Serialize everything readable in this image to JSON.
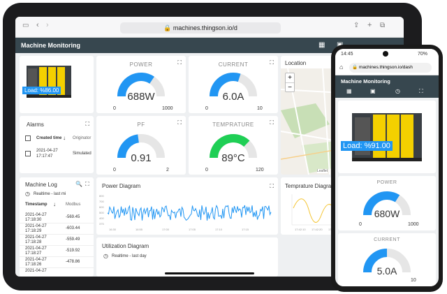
{
  "tablet": {
    "url": "machines.thingson.io/d",
    "app_title": "Machine Monitoring",
    "machine_card": {
      "load_label": "Load: %86.00"
    },
    "power": {
      "title": "POWER",
      "value": "688W",
      "min": "0",
      "max": "1000",
      "fraction": 0.688
    },
    "current": {
      "title": "CURRENT",
      "value": "6.0A",
      "min": "0",
      "max": "10",
      "fraction": 0.6
    },
    "pf": {
      "title": "PF",
      "value": "0.91",
      "min": "0",
      "max": "2",
      "fraction": 0.455
    },
    "temperature": {
      "title": "TEMPRATURE",
      "value": "89°C",
      "min": "0",
      "max": "120",
      "fraction": 0.742
    },
    "location": {
      "title": "Location",
      "zoom_in": "+",
      "zoom_out": "−",
      "attribution": "Leaflet"
    },
    "alarms": {
      "title": "Alarms",
      "col_created": "Created time",
      "col_originator": "Originator",
      "row_date": "2021-04-27",
      "row_time": "17:17:47",
      "row_originator": "Simulated"
    },
    "machine_log": {
      "title": "Machine Log",
      "subtitle": "Realtime - last mi",
      "col_timestamp": "Timestamp",
      "col_modbus": "Modbus",
      "rows": [
        {
          "date": "2021-04-27",
          "time": "17:18:30",
          "value": "-569.45"
        },
        {
          "date": "2021-04-27",
          "time": "17:18:29",
          "value": "-603.44"
        },
        {
          "date": "2021-04-27",
          "time": "17:18:28",
          "value": "-559.49"
        },
        {
          "date": "2021-04-27",
          "time": "17:18:27",
          "value": "-519.92"
        },
        {
          "date": "2021-04-27",
          "time": "17:18:26",
          "value": "-478.86"
        },
        {
          "date": "2021-04-27",
          "time": "",
          "value": ""
        }
      ]
    },
    "power_diagram": {
      "title": "Power Diagram",
      "y_ticks": [
        "800",
        "700",
        "600",
        "500",
        "400",
        "375"
      ],
      "x_ticks": [
        "16:30",
        "16:55",
        "17:00",
        "17:05",
        "17:10",
        "17:15"
      ]
    },
    "temperature_diagram": {
      "title": "Temprature Diagram",
      "x_ticks": [
        "17:42:10",
        "17:42:20",
        "17:42:30"
      ]
    },
    "utilization_diagram": {
      "title": "Utilization Diagram",
      "subtitle": "Realtime - last day"
    }
  },
  "phone": {
    "status_time": "14:45",
    "battery": "70%",
    "url": "machines.thingson.io/dash",
    "app_title": "Machine Monitoring",
    "load_label": "Load: %91.00",
    "power": {
      "title": "POWER",
      "value": "680W",
      "min": "0",
      "max": "1000",
      "fraction": 0.68
    },
    "current": {
      "title": "CURRENT",
      "value": "5.0A",
      "max": "10",
      "fraction": 0.5
    }
  },
  "colors": {
    "header": "#37474f",
    "gauge_blue": "#2196f3",
    "gauge_green": "#1fcf55",
    "track": "#e6e6e6",
    "load_blue": "#2196f3",
    "machine_yellow": "#f4d000"
  }
}
